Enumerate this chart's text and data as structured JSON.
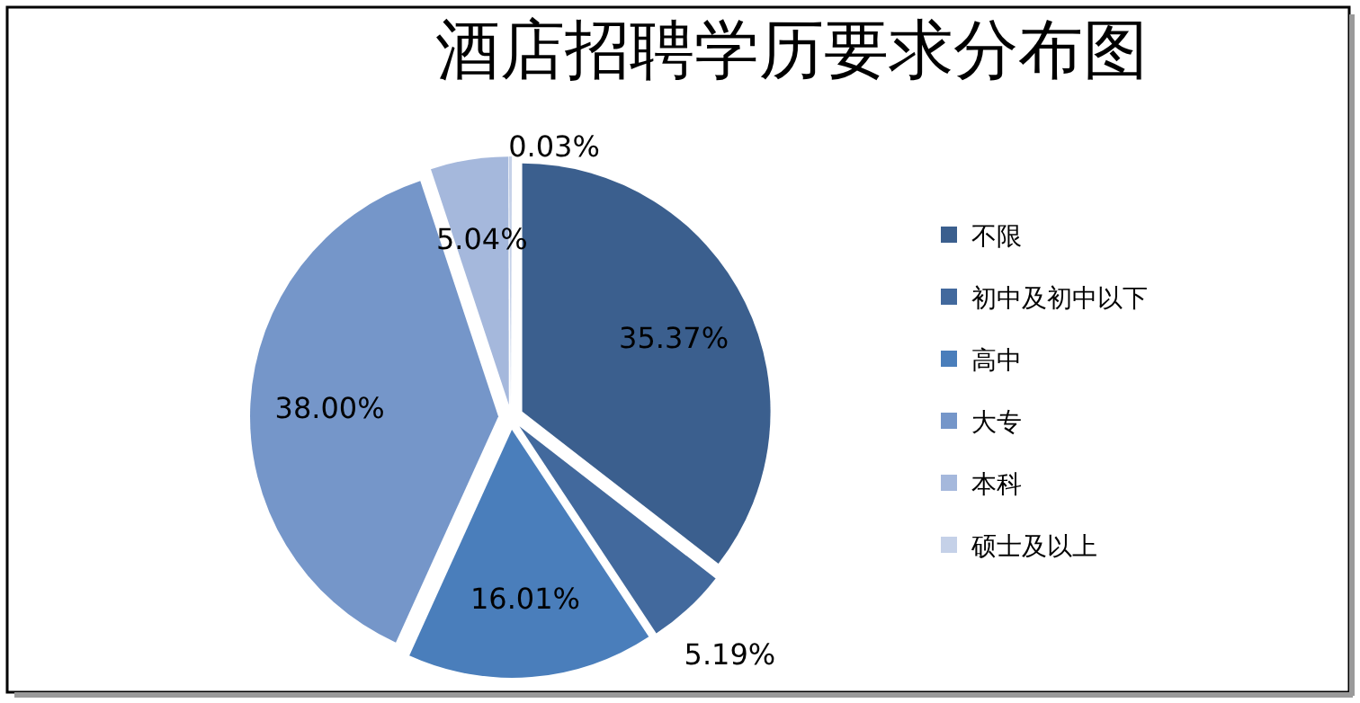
{
  "chart_data": {
    "type": "pie",
    "title": "酒店招聘学历要求分布图",
    "categories": [
      "不限",
      "初中及初中以下",
      "高中",
      "大专",
      "本科",
      "硕士及以上"
    ],
    "values": [
      35.37,
      5.19,
      16.01,
      38.0,
      5.04,
      0.03
    ],
    "colors": [
      "#3b5f8e",
      "#42699d",
      "#4a7ebb",
      "#7596c9",
      "#a5b8dc",
      "#c5d1e8"
    ],
    "value_labels": [
      "35.37%",
      "5.19%",
      "16.01%",
      "38.00%",
      "5.04%",
      "0.03%"
    ],
    "legend": "right"
  }
}
